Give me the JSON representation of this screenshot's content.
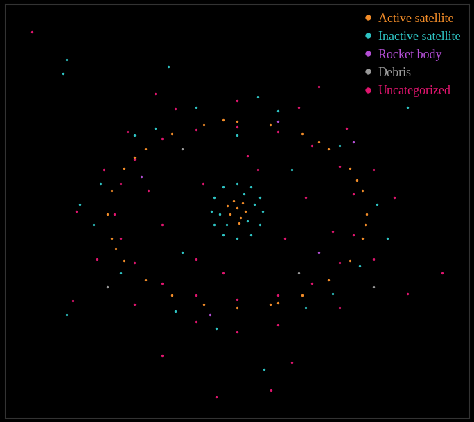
{
  "chart_data": {
    "type": "scatter",
    "xlim": [
      -340,
      340
    ],
    "ylim": [
      -300,
      300
    ],
    "tick_labels": false,
    "grid": false,
    "legend": "upper right",
    "series": [
      {
        "name": "Active satellite",
        "color": "#f28c28",
        "marker": "circle",
        "x": [
          190,
          184,
          165,
          134,
          95,
          49,
          0,
          -49,
          -95,
          -134,
          -165,
          -184,
          -190,
          -184,
          -165,
          -134,
          -95,
          -49,
          0,
          49,
          95,
          134,
          165,
          184,
          175,
          120,
          -20,
          -150,
          -178,
          60,
          188,
          0,
          -10,
          8,
          5,
          -5,
          12,
          -14,
          3
        ],
        "y": [
          -5,
          30,
          62,
          90,
          112,
          125,
          130,
          125,
          112,
          90,
          62,
          30,
          -5,
          -40,
          -72,
          -100,
          -122,
          -135,
          -140,
          -135,
          -122,
          -100,
          -72,
          -40,
          45,
          100,
          132,
          78,
          -55,
          -133,
          -20,
          5,
          -5,
          12,
          -10,
          15,
          0,
          8,
          -18
        ]
      },
      {
        "name": "Inactive satellite",
        "color": "#2ec4c4",
        "marker": "circle",
        "x": [
          38,
          33,
          20,
          0,
          -20,
          -33,
          -38,
          -33,
          -20,
          0,
          20,
          33,
          25,
          -15,
          10,
          -25,
          15,
          205,
          -200,
          -210,
          150,
          -120,
          60,
          -60,
          180,
          -170,
          100,
          -90,
          30,
          -30,
          220,
          -230,
          140,
          -150,
          0,
          80,
          -80,
          250,
          -250,
          -255,
          40,
          -100,
          -250
        ],
        "y": [
          0,
          20,
          35,
          40,
          35,
          20,
          0,
          -20,
          -35,
          -40,
          -35,
          -20,
          10,
          -20,
          25,
          -5,
          -15,
          10,
          40,
          -20,
          95,
          120,
          145,
          150,
          -80,
          -90,
          -140,
          -145,
          165,
          -170,
          -40,
          10,
          -120,
          110,
          110,
          60,
          -60,
          150,
          -150,
          200,
          -230,
          210,
          220
        ]
      },
      {
        "name": "Rocket body",
        "color": "#b44fd6",
        "marker": "circle",
        "x": [
          120,
          -140,
          60,
          -40,
          170
        ],
        "y": [
          -60,
          50,
          130,
          -150,
          100
        ]
      },
      {
        "name": "Debris",
        "color": "#999999",
        "marker": "circle",
        "x": [
          -80,
          90,
          200,
          -190
        ],
        "y": [
          90,
          -90,
          -110,
          -110
        ]
      },
      {
        "name": "Uncategorized",
        "color": "#e0156e",
        "marker": "circle",
        "x": [
          -180,
          -170,
          -150,
          -110,
          -60,
          0,
          60,
          110,
          150,
          170,
          170,
          150,
          110,
          60,
          0,
          -60,
          -110,
          -150,
          -170,
          200,
          -195,
          160,
          -160,
          90,
          -90,
          0,
          200,
          -205,
          150,
          -150,
          60,
          -60,
          0,
          230,
          -235,
          120,
          -120,
          250,
          -240,
          50,
          -30,
          80,
          -110,
          300,
          -300,
          30,
          -50,
          70,
          -60,
          100,
          -110,
          15,
          -20,
          140,
          -130
        ],
        "y": [
          -5,
          40,
          75,
          105,
          118,
          122,
          115,
          95,
          65,
          25,
          -35,
          -75,
          -105,
          -122,
          -128,
          -122,
          -105,
          -75,
          -40,
          60,
          60,
          120,
          115,
          150,
          148,
          160,
          -70,
          -70,
          -140,
          -135,
          -165,
          -160,
          -175,
          20,
          0,
          180,
          170,
          -120,
          -130,
          -260,
          -270,
          -220,
          -210,
          -90,
          260,
          60,
          40,
          -40,
          -70,
          20,
          -20,
          80,
          -90,
          -30,
          30
        ]
      }
    ]
  }
}
